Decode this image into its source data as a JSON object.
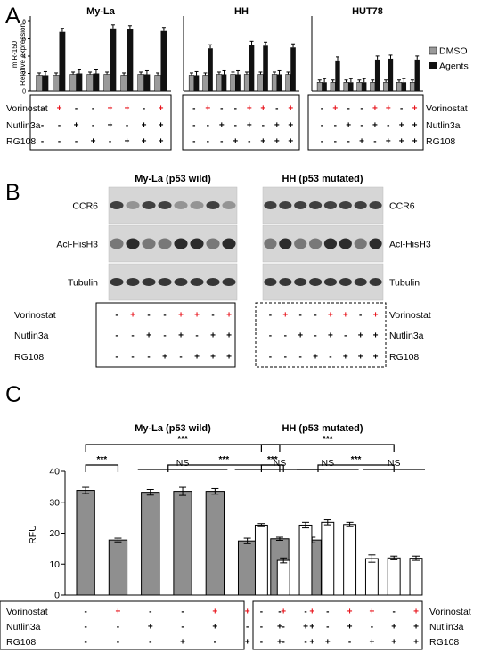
{
  "panels": {
    "a": "A",
    "b": "B",
    "c": "C"
  },
  "treatment_rows": [
    "Vorinostat",
    "Nutlin3a",
    "RG108"
  ],
  "plus": "+",
  "minus": "-",
  "conditions": {
    "vorinostat": [
      0,
      1,
      0,
      0,
      1,
      1,
      0,
      1
    ],
    "nutlin3a": [
      0,
      0,
      1,
      0,
      1,
      0,
      1,
      1
    ],
    "rg108": [
      0,
      0,
      0,
      1,
      0,
      1,
      1,
      1
    ]
  },
  "colors": {
    "active": "#e8141c",
    "dmso": "#9a9a9a",
    "agents": "#111111",
    "fill_c": "#8f8f8f"
  },
  "panel_a": {
    "ylabel_line1": "miR-150",
    "ylabel_line2": "Relative expression",
    "legend": [
      "DMSO",
      "Agents"
    ],
    "charts": [
      {
        "title": "My-La",
        "dmso": [
          1.8,
          1.8,
          1.9,
          1.9,
          1.9,
          1.8,
          1.9,
          1.8
        ],
        "agents": [
          1.8,
          6.8,
          2.0,
          2.0,
          7.2,
          7.1,
          1.9,
          6.9
        ],
        "ylim": [
          0,
          8
        ]
      },
      {
        "title": "HH",
        "dmso": [
          1.8,
          1.8,
          1.9,
          1.9,
          1.9,
          1.9,
          1.9,
          1.9
        ],
        "agents": [
          1.8,
          4.9,
          1.9,
          1.9,
          5.3,
          5.2,
          1.9,
          5.0
        ],
        "ylim": [
          0,
          8
        ]
      },
      {
        "title": "HUT78",
        "dmso": [
          1.0,
          1.0,
          1.0,
          1.0,
          1.0,
          1.0,
          1.0,
          1.0
        ],
        "agents": [
          1.0,
          3.5,
          1.0,
          1.0,
          3.6,
          3.7,
          1.0,
          3.6
        ],
        "ylim": [
          0,
          8
        ]
      }
    ]
  },
  "panel_b": {
    "blots": [
      {
        "title": "My-La (p53 wild)",
        "proteins": [
          "CCR6",
          "Acl-HisH3",
          "Tubulin"
        ]
      },
      {
        "title": "HH (p53 mutated)",
        "proteins": [
          "CCR6",
          "Acl-HisH3",
          "Tubulin"
        ]
      }
    ]
  },
  "chart_data": {
    "type": "bar",
    "ylabel": "RFU",
    "ylim": [
      0,
      40
    ],
    "yticks": [
      0,
      10,
      20,
      30,
      40
    ],
    "groups": [
      {
        "title": "My-La (p53 wild)",
        "values": [
          33.8,
          17.8,
          33.2,
          33.5,
          33.5,
          17.5,
          18.2,
          17.8
        ],
        "errors": [
          1.0,
          0.6,
          0.9,
          1.3,
          0.9,
          0.9,
          0.5,
          0.9
        ]
      },
      {
        "title": "HH (p53 mutated)",
        "values": [
          22.6,
          11.2,
          22.6,
          23.5,
          22.8,
          11.8,
          12.0,
          11.9
        ],
        "errors": [
          0.5,
          0.8,
          0.9,
          0.8,
          0.7,
          1.2,
          0.6,
          0.7
        ]
      }
    ],
    "significance": {
      "strong": "***",
      "ns": "NS"
    }
  }
}
